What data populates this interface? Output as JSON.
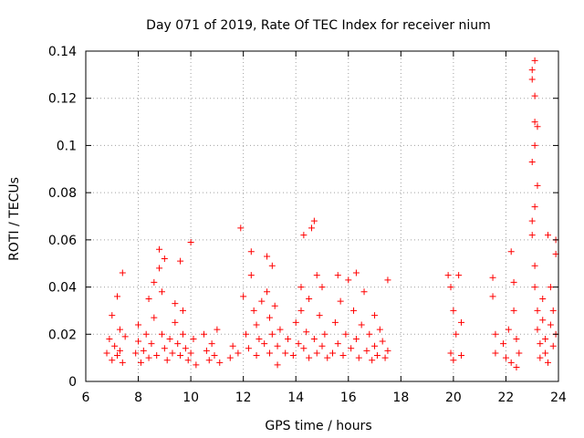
{
  "chart_data": {
    "type": "scatter",
    "title": "Day 071 of 2019, Rate Of TEC Index for receiver nium",
    "xlabel": "GPS time / hours",
    "ylabel": "ROTI / TECUs",
    "xlim": [
      6,
      24
    ],
    "ylim": [
      0,
      0.14
    ],
    "xticks": [
      "6",
      "8",
      "10",
      "12",
      "14",
      "16",
      "18",
      "20",
      "22",
      "24"
    ],
    "yticks": [
      "0",
      "0.02",
      "0.04",
      "0.06",
      "0.08",
      "0.1",
      "0.12",
      "0.14"
    ],
    "grid": true,
    "marker": "plus",
    "color": "#ff0000",
    "series": [
      {
        "name": "ROTI",
        "points": [
          [
            6.8,
            0.012
          ],
          [
            6.9,
            0.018
          ],
          [
            7.0,
            0.009
          ],
          [
            7.0,
            0.028
          ],
          [
            7.1,
            0.015
          ],
          [
            7.2,
            0.011
          ],
          [
            7.2,
            0.036
          ],
          [
            7.3,
            0.022
          ],
          [
            7.3,
            0.013
          ],
          [
            7.4,
            0.046
          ],
          [
            7.4,
            0.008
          ],
          [
            7.5,
            0.019
          ],
          [
            7.9,
            0.012
          ],
          [
            8.0,
            0.017
          ],
          [
            8.0,
            0.024
          ],
          [
            8.1,
            0.008
          ],
          [
            8.2,
            0.013
          ],
          [
            8.3,
            0.02
          ],
          [
            8.4,
            0.035
          ],
          [
            8.4,
            0.01
          ],
          [
            8.5,
            0.016
          ],
          [
            8.6,
            0.042
          ],
          [
            8.6,
            0.027
          ],
          [
            8.7,
            0.011
          ],
          [
            8.8,
            0.056
          ],
          [
            8.8,
            0.048
          ],
          [
            8.9,
            0.038
          ],
          [
            8.9,
            0.02
          ],
          [
            9.0,
            0.014
          ],
          [
            9.0,
            0.052
          ],
          [
            9.1,
            0.009
          ],
          [
            9.2,
            0.018
          ],
          [
            9.3,
            0.012
          ],
          [
            9.4,
            0.033
          ],
          [
            9.4,
            0.025
          ],
          [
            9.5,
            0.016
          ],
          [
            9.6,
            0.051
          ],
          [
            9.6,
            0.011
          ],
          [
            9.7,
            0.03
          ],
          [
            9.7,
            0.02
          ],
          [
            9.8,
            0.014
          ],
          [
            9.9,
            0.009
          ],
          [
            10.0,
            0.059
          ],
          [
            10.0,
            0.012
          ],
          [
            10.1,
            0.018
          ],
          [
            10.2,
            0.007
          ],
          [
            10.5,
            0.02
          ],
          [
            10.6,
            0.013
          ],
          [
            10.7,
            0.009
          ],
          [
            10.8,
            0.016
          ],
          [
            10.9,
            0.011
          ],
          [
            11.0,
            0.022
          ],
          [
            11.1,
            0.008
          ],
          [
            11.5,
            0.01
          ],
          [
            11.6,
            0.015
          ],
          [
            11.8,
            0.012
          ],
          [
            11.9,
            0.065
          ],
          [
            12.0,
            0.036
          ],
          [
            12.1,
            0.02
          ],
          [
            12.2,
            0.014
          ],
          [
            12.3,
            0.055
          ],
          [
            12.3,
            0.045
          ],
          [
            12.4,
            0.03
          ],
          [
            12.5,
            0.024
          ],
          [
            12.5,
            0.011
          ],
          [
            12.6,
            0.018
          ],
          [
            12.7,
            0.034
          ],
          [
            12.8,
            0.016
          ],
          [
            12.9,
            0.053
          ],
          [
            12.9,
            0.038
          ],
          [
            13.0,
            0.027
          ],
          [
            13.0,
            0.012
          ],
          [
            13.1,
            0.049
          ],
          [
            13.1,
            0.02
          ],
          [
            13.2,
            0.032
          ],
          [
            13.3,
            0.015
          ],
          [
            13.3,
            0.007
          ],
          [
            13.4,
            0.022
          ],
          [
            13.6,
            0.012
          ],
          [
            13.7,
            0.018
          ],
          [
            13.9,
            0.011
          ],
          [
            14.0,
            0.025
          ],
          [
            14.1,
            0.016
          ],
          [
            14.2,
            0.04
          ],
          [
            14.2,
            0.03
          ],
          [
            14.3,
            0.062
          ],
          [
            14.3,
            0.014
          ],
          [
            14.4,
            0.021
          ],
          [
            14.5,
            0.01
          ],
          [
            14.5,
            0.035
          ],
          [
            14.6,
            0.065
          ],
          [
            14.7,
            0.068
          ],
          [
            14.7,
            0.018
          ],
          [
            14.8,
            0.045
          ],
          [
            14.8,
            0.012
          ],
          [
            14.9,
            0.028
          ],
          [
            15.0,
            0.04
          ],
          [
            15.0,
            0.015
          ],
          [
            15.1,
            0.02
          ],
          [
            15.2,
            0.01
          ],
          [
            15.4,
            0.012
          ],
          [
            15.5,
            0.025
          ],
          [
            15.6,
            0.045
          ],
          [
            15.6,
            0.016
          ],
          [
            15.7,
            0.034
          ],
          [
            15.8,
            0.011
          ],
          [
            15.9,
            0.02
          ],
          [
            16.0,
            0.043
          ],
          [
            16.1,
            0.014
          ],
          [
            16.2,
            0.03
          ],
          [
            16.3,
            0.046
          ],
          [
            16.3,
            0.018
          ],
          [
            16.4,
            0.01
          ],
          [
            16.5,
            0.024
          ],
          [
            16.6,
            0.038
          ],
          [
            16.7,
            0.013
          ],
          [
            16.8,
            0.02
          ],
          [
            16.9,
            0.009
          ],
          [
            17.0,
            0.028
          ],
          [
            17.0,
            0.015
          ],
          [
            17.1,
            0.011
          ],
          [
            17.2,
            0.022
          ],
          [
            17.3,
            0.017
          ],
          [
            17.4,
            0.01
          ],
          [
            17.5,
            0.043
          ],
          [
            17.5,
            0.013
          ],
          [
            19.8,
            0.045
          ],
          [
            19.9,
            0.04
          ],
          [
            19.9,
            0.012
          ],
          [
            20.0,
            0.03
          ],
          [
            20.0,
            0.009
          ],
          [
            20.1,
            0.02
          ],
          [
            20.2,
            0.045
          ],
          [
            20.3,
            0.025
          ],
          [
            20.3,
            0.011
          ],
          [
            21.5,
            0.044
          ],
          [
            21.5,
            0.036
          ],
          [
            21.6,
            0.02
          ],
          [
            21.6,
            0.012
          ],
          [
            21.9,
            0.016
          ],
          [
            22.0,
            0.01
          ],
          [
            22.1,
            0.022
          ],
          [
            22.2,
            0.008
          ],
          [
            22.2,
            0.055
          ],
          [
            22.3,
            0.042
          ],
          [
            22.3,
            0.03
          ],
          [
            22.4,
            0.018
          ],
          [
            22.4,
            0.006
          ],
          [
            22.5,
            0.012
          ],
          [
            23.0,
            0.132
          ],
          [
            23.0,
            0.128
          ],
          [
            23.1,
            0.136
          ],
          [
            23.1,
            0.121
          ],
          [
            23.1,
            0.11
          ],
          [
            23.2,
            0.108
          ],
          [
            23.1,
            0.1
          ],
          [
            23.0,
            0.093
          ],
          [
            23.2,
            0.083
          ],
          [
            23.1,
            0.074
          ],
          [
            23.0,
            0.068
          ],
          [
            23.0,
            0.062
          ],
          [
            23.1,
            0.049
          ],
          [
            23.1,
            0.04
          ],
          [
            23.2,
            0.03
          ],
          [
            23.2,
            0.022
          ],
          [
            23.3,
            0.016
          ],
          [
            23.3,
            0.01
          ],
          [
            23.4,
            0.035
          ],
          [
            23.4,
            0.026
          ],
          [
            23.5,
            0.018
          ],
          [
            23.5,
            0.012
          ],
          [
            23.6,
            0.008
          ],
          [
            23.6,
            0.062
          ],
          [
            23.7,
            0.04
          ],
          [
            23.7,
            0.024
          ],
          [
            23.8,
            0.015
          ],
          [
            23.8,
            0.03
          ],
          [
            23.9,
            0.06
          ],
          [
            23.9,
            0.054
          ],
          [
            23.9,
            0.02
          ]
        ]
      }
    ]
  }
}
